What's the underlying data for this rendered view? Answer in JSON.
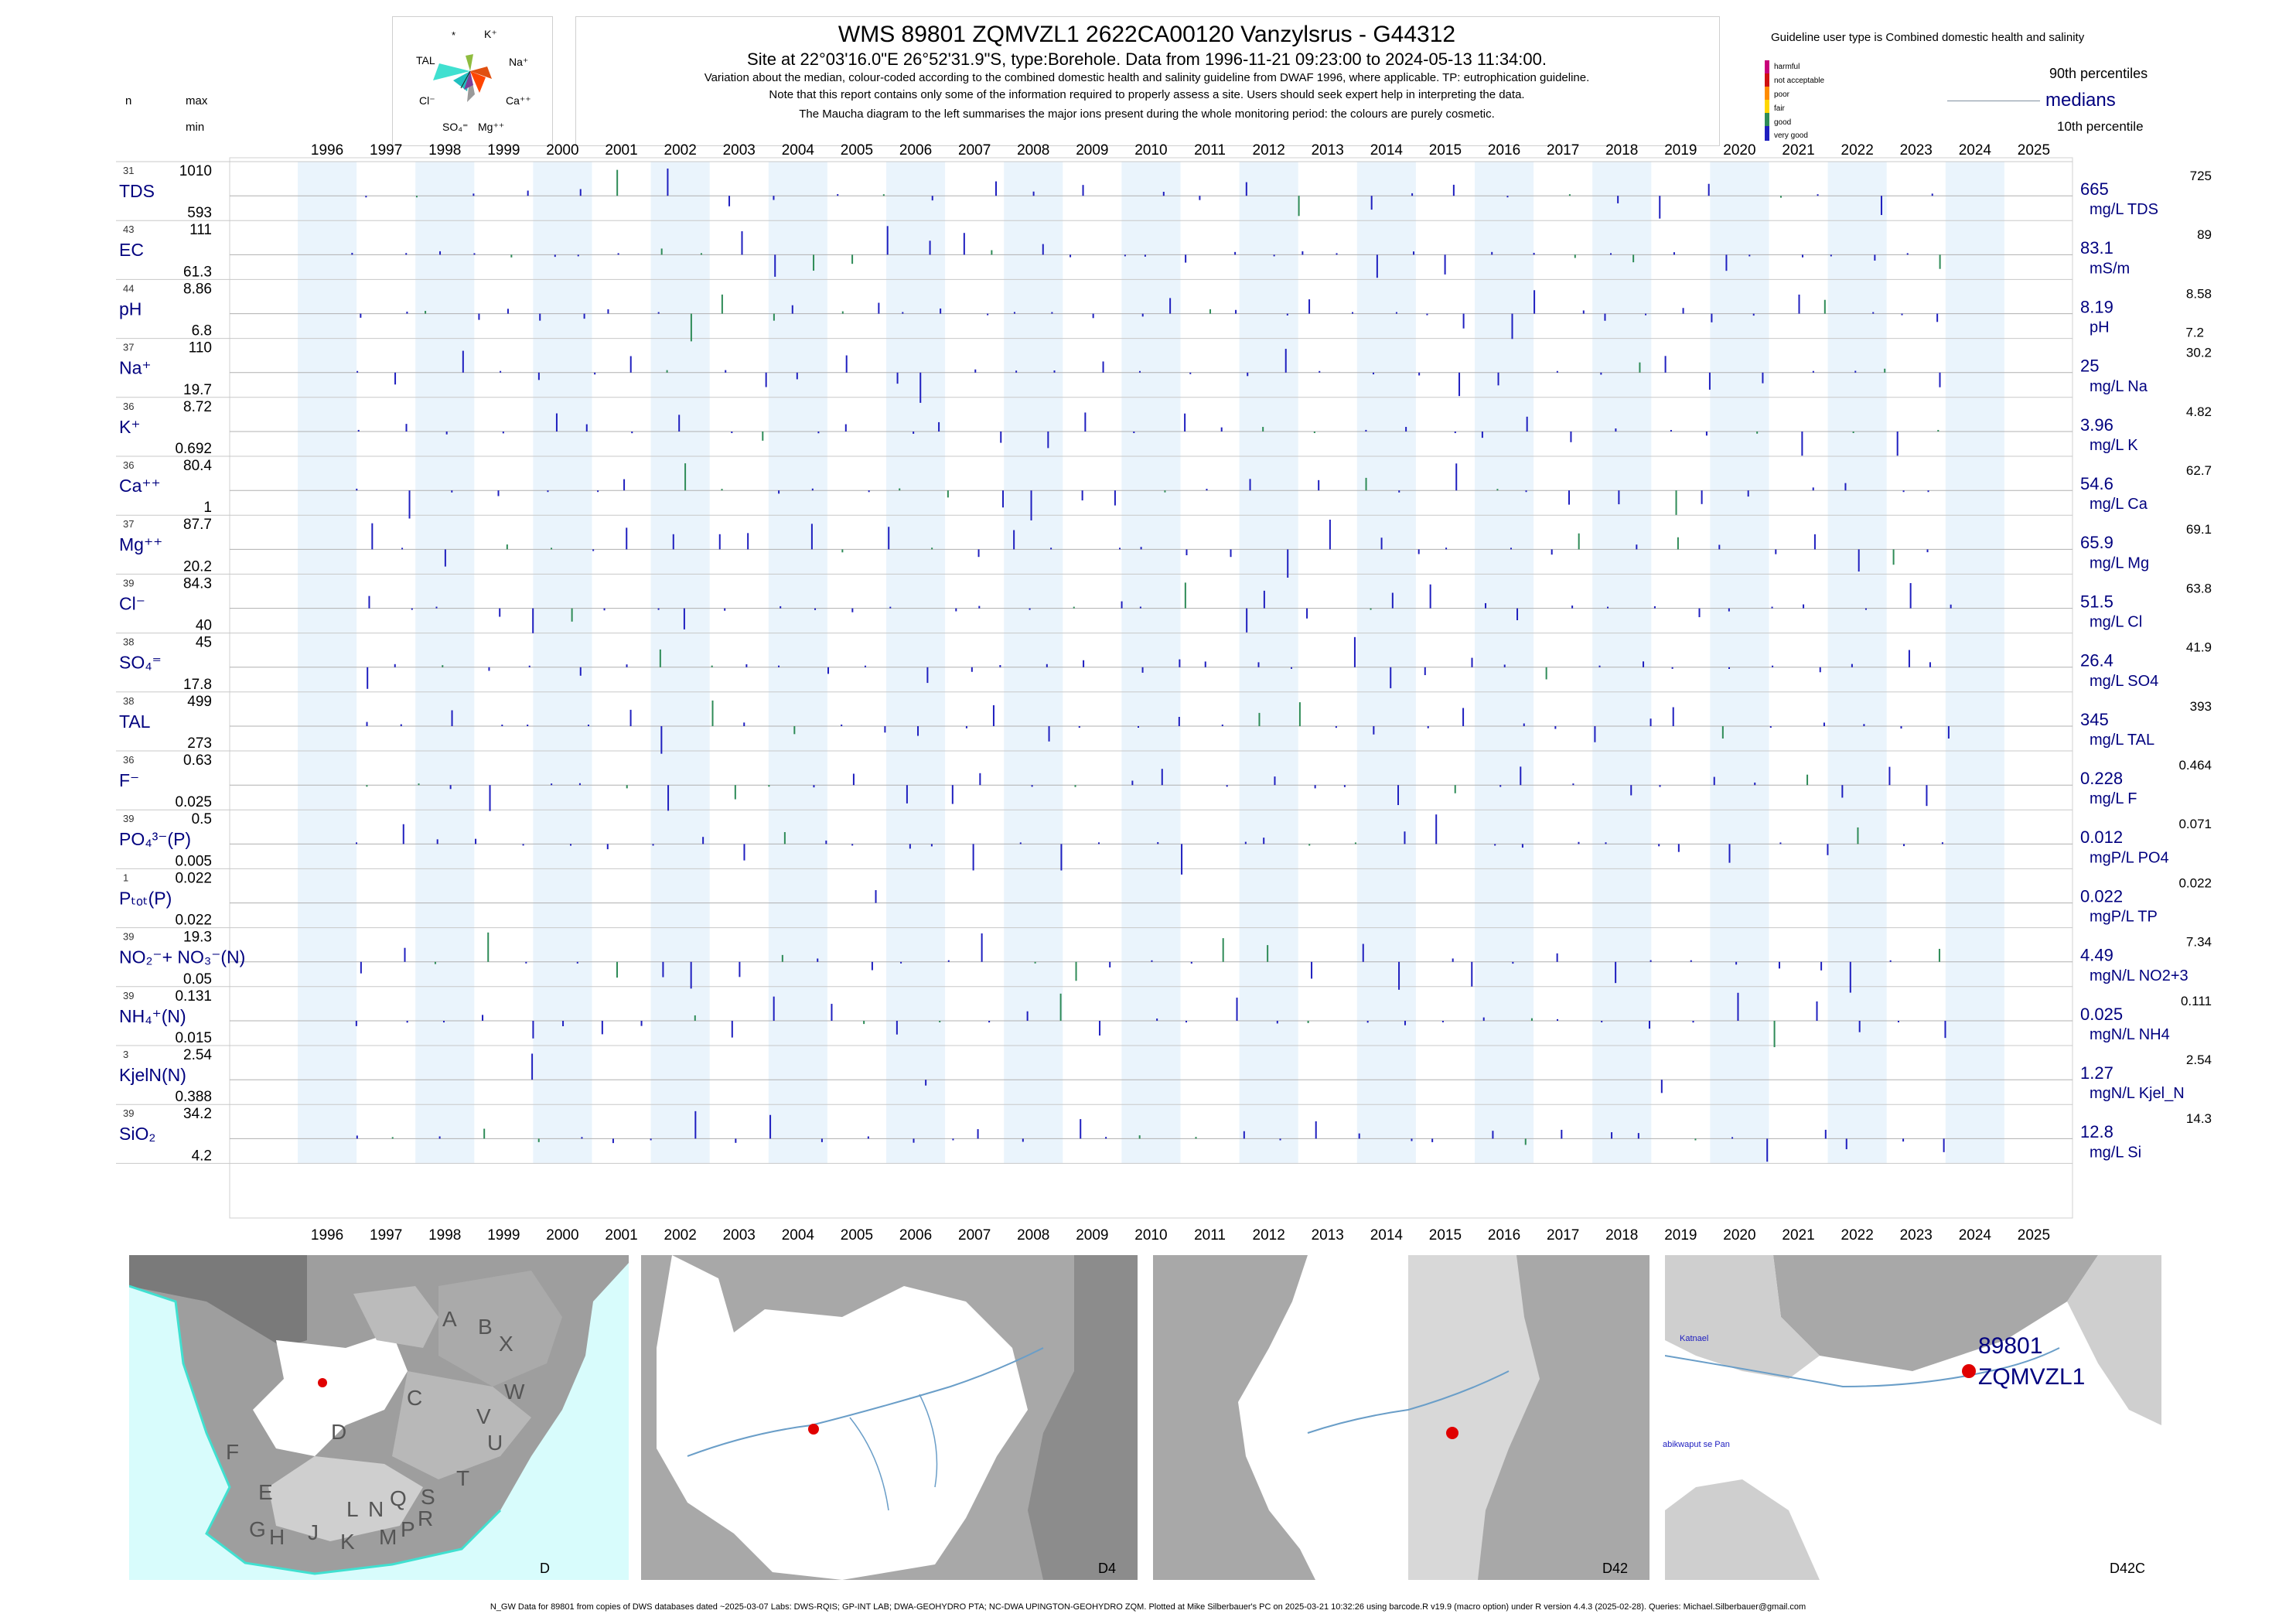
{
  "header": {
    "title": "WMS 89801 ZQMVZL1 2622CA00120 Vanzylsrus - G44312",
    "subtitle": "Site at 22°03'16.0\"E 26°52'31.9\"S, type:Borehole.  Data from 1996-11-21 09:23:00 to 2024-05-13 11:34:00.",
    "note1": "Variation about the median,  colour-coded according to the combined domestic health and salinity guideline from DWAF 1996, where applicable. TP: eutrophication guideline.",
    "note2": "Note that this report contains only some of the information required to properly assess a site. Users should seek expert help in interpreting the data.",
    "note3": "The Maucha diagram to the left summarises the major ions present during the whole monitoring period: the colours are purely cosmetic."
  },
  "maucha": {
    "labels": [
      "*",
      "K⁺",
      "TAL",
      "Na⁺",
      "Cl⁻",
      "Ca⁺⁺",
      "SO₄⁼",
      "Mg⁺⁺"
    ]
  },
  "left_head": {
    "n": "n",
    "max": "max",
    "min": "min"
  },
  "legend": {
    "guideline_title": "Guideline user type is Combined domestic health and salinity",
    "categories": [
      "harmful",
      "not acceptable",
      "poor",
      "fair",
      "good",
      "very good"
    ],
    "colors": [
      "#c8007a",
      "#d01010",
      "#ff8c00",
      "#ffd700",
      "#2e8b57",
      "#1f1fbf"
    ],
    "p90": "90th percentiles",
    "medians": "medians",
    "p10": "10th percentile"
  },
  "chart_data": {
    "type": "strip-time-series",
    "x_range": [
      "1996-01-01",
      "2026-01-01"
    ],
    "year_labels": [
      "1996",
      "1997",
      "1998",
      "1999",
      "2000",
      "2001",
      "2002",
      "2003",
      "2004",
      "2005",
      "2006",
      "2007",
      "2008",
      "2009",
      "2010",
      "2011",
      "2012",
      "2013",
      "2014",
      "2015",
      "2016",
      "2017",
      "2018",
      "2019",
      "2020",
      "2021",
      "2022",
      "2023",
      "2024",
      "2025"
    ],
    "shaded_years": [
      1996,
      1998,
      2000,
      2002,
      2004,
      2006,
      2008,
      2010,
      2012,
      2014,
      2016,
      2018,
      2020,
      2022,
      2024
    ],
    "rows": [
      {
        "n": "31",
        "label": "TDS",
        "max": "1010",
        "min": "593",
        "median": "665",
        "p90": "725",
        "p10": "",
        "unit": "mg/L TDS"
      },
      {
        "n": "43",
        "label": "EC",
        "max": "111",
        "min": "61.3",
        "median": "83.1",
        "p90": "89",
        "p10": "",
        "unit": "mS/m"
      },
      {
        "n": "44",
        "label": "pH",
        "max": "8.86",
        "min": "6.8",
        "median": "8.19",
        "p90": "8.58",
        "p10": "7.2",
        "unit": "pH"
      },
      {
        "n": "37",
        "label": "Na⁺",
        "max": "110",
        "min": "19.7",
        "median": "25",
        "p90": "30.2",
        "p10": "",
        "unit": "mg/L Na"
      },
      {
        "n": "36",
        "label": "K⁺",
        "max": "8.72",
        "min": "0.692",
        "median": "3.96",
        "p90": "4.82",
        "p10": "",
        "unit": "mg/L K"
      },
      {
        "n": "36",
        "label": "Ca⁺⁺",
        "max": "80.4",
        "min": "1",
        "median": "54.6",
        "p90": "62.7",
        "p10": "",
        "unit": "mg/L Ca"
      },
      {
        "n": "37",
        "label": "Mg⁺⁺",
        "max": "87.7",
        "min": "20.2",
        "median": "65.9",
        "p90": "69.1",
        "p10": "",
        "unit": "mg/L Mg"
      },
      {
        "n": "39",
        "label": "Cl⁻",
        "max": "84.3",
        "min": "40",
        "median": "51.5",
        "p90": "63.8",
        "p10": "",
        "unit": "mg/L Cl"
      },
      {
        "n": "38",
        "label": "SO₄⁼",
        "max": "45",
        "min": "17.8",
        "median": "26.4",
        "p90": "41.9",
        "p10": "",
        "unit": "mg/L SO4"
      },
      {
        "n": "38",
        "label": "TAL",
        "max": "499",
        "min": "273",
        "median": "345",
        "p90": "393",
        "p10": "",
        "unit": "mg/L TAL"
      },
      {
        "n": "36",
        "label": "F⁻",
        "max": "0.63",
        "min": "0.025",
        "median": "0.228",
        "p90": "0.464",
        "p10": "",
        "unit": "mg/L F"
      },
      {
        "n": "39",
        "label": "PO₄³⁻(P)",
        "max": "0.5",
        "min": "0.005",
        "median": "0.012",
        "p90": "0.071",
        "p10": "",
        "unit": "mgP/L PO4"
      },
      {
        "n": "1",
        "label": "Pₜₒₜ(P)",
        "max": "0.022",
        "min": "0.022",
        "median": "0.022",
        "p90": "0.022",
        "p10": "",
        "unit": "mgP/L TP"
      },
      {
        "n": "39",
        "label": "NO₂⁻+ NO₃⁻(N)",
        "max": "19.3",
        "min": "0.05",
        "median": "4.49",
        "p90": "7.34",
        "p10": "",
        "unit": "mgN/L NO2+3"
      },
      {
        "n": "39",
        "label": "NH₄⁺(N)",
        "max": "0.131",
        "min": "0.015",
        "median": "0.025",
        "p90": "0.111",
        "p10": "",
        "unit": "mgN/L NH4"
      },
      {
        "n": "3",
        "label": "KjelN(N)",
        "max": "2.54",
        "min": "0.388",
        "median": "1.27",
        "p90": "2.54",
        "p10": "",
        "unit": "mgN/L Kjel_N"
      },
      {
        "n": "39",
        "label": "SiO₂",
        "max": "34.2",
        "min": "4.2",
        "median": "12.8",
        "p90": "14.3",
        "p10": "",
        "unit": "mg/L Si"
      }
    ]
  },
  "maps": [
    {
      "caption": "D",
      "letters": [
        "A",
        "B",
        "X",
        "C",
        "W",
        "V",
        "U",
        "D",
        "T",
        "F",
        "E",
        "G",
        "H",
        "J",
        "K",
        "L",
        "M",
        "N",
        "P",
        "Q",
        "R",
        "S"
      ]
    },
    {
      "caption": "D4"
    },
    {
      "caption": "D42"
    },
    {
      "caption": "D42C",
      "site_id": "89801",
      "site_name": "ZQMVZL1",
      "place1": "Katnael",
      "place2": "abikwaput se Pan"
    }
  ],
  "footer": "N_GW Data for 89801 from copies of DWS databases dated ~2025-03-07 Labs: DWS-RQIS; GP-INT LAB; DWA-GEOHYDRO PTA; NC-DWA UPINGTON-GEOHYDRO ZQM. Plotted at Mike Silberbauer's PC on 2025-03-21 10:32:26 using barcode.R v19.9 (macro option) under R version 4.4.3 (2025-02-28). Queries: Michael.Silberbauer@gmail.com"
}
